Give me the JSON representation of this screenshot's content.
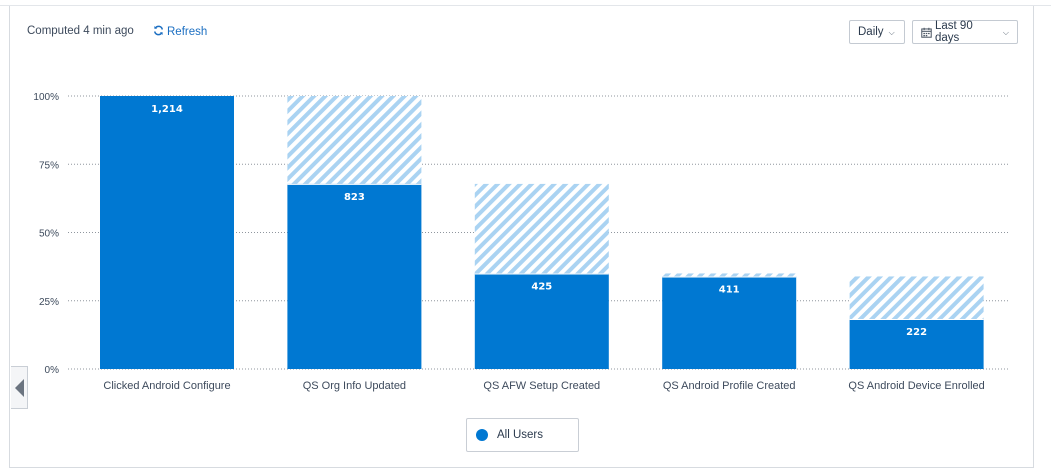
{
  "header": {
    "computed_text": "Computed 4 min ago",
    "refresh_label": "Refresh",
    "interval_label": "Daily",
    "range_label": "Last 90 days"
  },
  "legend": {
    "series_label": "All Users",
    "color": "#0078d2"
  },
  "colors": {
    "bar": "#0078d2",
    "dropoff_stripe": "#aad3f2",
    "gridline": "#8f969e",
    "axis_text": "#3d4a5c"
  },
  "chart_data": {
    "type": "bar",
    "stacked_dropoff": true,
    "categories": [
      "Clicked Android Configure",
      "QS Org Info Updated",
      "QS AFW Setup Created",
      "QS Android Profile Created",
      "QS Android Device Enrolled"
    ],
    "series": [
      {
        "name": "All Users",
        "counts": [
          1214,
          823,
          425,
          411,
          222
        ],
        "count_labels": [
          "1,214",
          "823",
          "425",
          "411",
          "222"
        ],
        "percent_of_first": [
          100,
          67.8,
          35.0,
          33.9,
          18.3
        ],
        "previous_step_percent": [
          100,
          100,
          67.8,
          35.0,
          33.9
        ]
      }
    ],
    "y_ticks": [
      "0%",
      "25%",
      "50%",
      "75%",
      "100%"
    ],
    "ylim": [
      0,
      100
    ],
    "grid": true,
    "legend_position": "bottom-center"
  }
}
